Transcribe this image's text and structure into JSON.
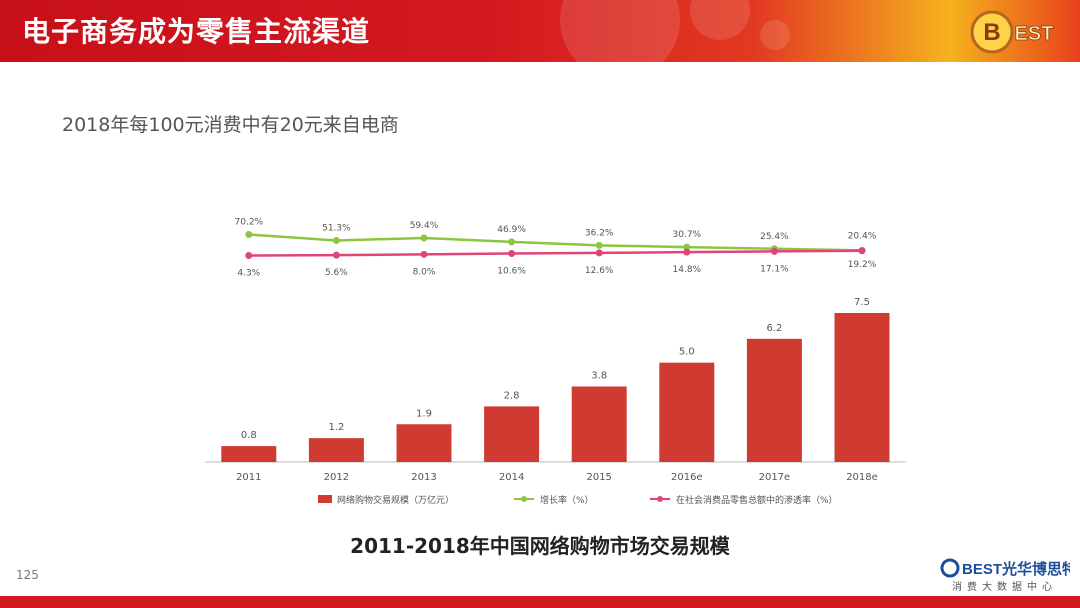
{
  "header": {
    "title": "电子商务成为零售主流渠道",
    "logo_text": "BEST"
  },
  "subtitle": "2018年每100元消费中有20元来自电商",
  "chart_data": {
    "type": "bar",
    "categories": [
      "2011",
      "2012",
      "2013",
      "2014",
      "2015",
      "2016e",
      "2017e",
      "2018e"
    ],
    "series": [
      {
        "name": "网络购物交易规模（万亿元）",
        "type": "bar",
        "color": "#cf3b30",
        "values": [
          0.8,
          1.2,
          1.9,
          2.8,
          3.8,
          5.0,
          6.2,
          7.5
        ],
        "labels": [
          "0.8",
          "1.2",
          "1.9",
          "2.8",
          "3.8",
          "5.0",
          "6.2",
          "7.5"
        ]
      },
      {
        "name": "增长率（%）",
        "type": "line",
        "color": "#8cc63f",
        "values": [
          70.2,
          51.3,
          59.4,
          46.9,
          36.2,
          30.7,
          25.4,
          20.4
        ],
        "labels": [
          "70.2%",
          "51.3%",
          "59.4%",
          "46.9%",
          "36.2%",
          "30.7%",
          "25.4%",
          "20.4%"
        ]
      },
      {
        "name": "在社会消费品零售总额中的渗透率（%）",
        "type": "line",
        "color": "#e0457a",
        "values": [
          4.3,
          5.6,
          8.0,
          10.6,
          12.6,
          14.8,
          17.1,
          19.2
        ],
        "labels": [
          "4.3%",
          "5.6%",
          "8.0%",
          "10.6%",
          "12.6%",
          "14.8%",
          "17.1%",
          "19.2%"
        ]
      }
    ],
    "title": "2011-2018年中国网络购物市场交易规模",
    "xlabel": "",
    "ylabel": "",
    "legend": "bottom"
  },
  "page_number": "125",
  "footer": {
    "brand": "BEST光华博思特",
    "tagline": "消费大数据中心"
  }
}
